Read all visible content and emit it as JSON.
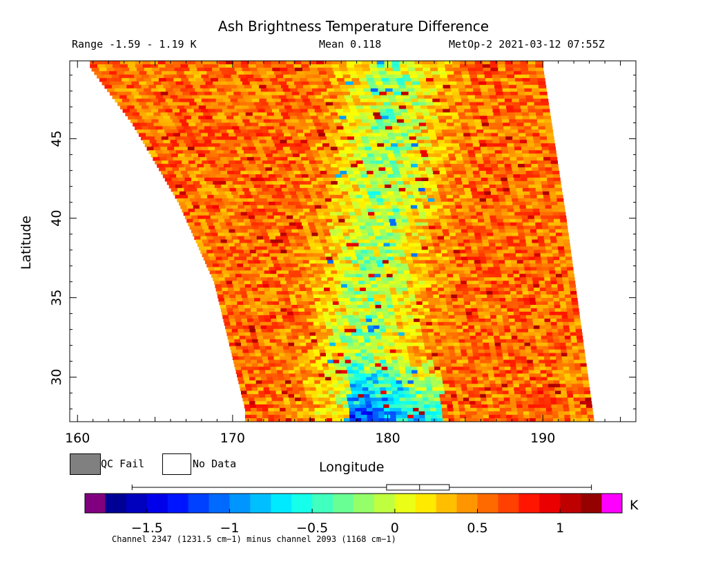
{
  "chart_data": {
    "type": "heatmap",
    "title": "Ash Brightness Temperature Difference",
    "range_text": "Range -1.59 - 1.19 K",
    "mean_text": "Mean 0.118",
    "satellite_time": "MetOp-2 2021-03-12 07:55Z",
    "xlabel": "Longitude",
    "ylabel": "Latitude",
    "xlim": [
      159.5,
      196
    ],
    "ylim": [
      27.2,
      49.9
    ],
    "xticks": [
      160,
      170,
      180,
      190
    ],
    "yticks": [
      30,
      35,
      40,
      45
    ],
    "swath": {
      "left_edge": [
        [
          160.8,
          49.5
        ],
        [
          163.5,
          46.0
        ],
        [
          166.5,
          41.0
        ],
        [
          168.8,
          36.0
        ],
        [
          170.8,
          28.0
        ]
      ],
      "right_edge": [
        [
          190.0,
          49.5
        ],
        [
          191.5,
          40.0
        ],
        [
          193.3,
          27.2
        ]
      ],
      "value_range": [
        -1.59,
        1.19
      ],
      "mean": 0.118,
      "pattern": "warm (0.3 to 1.0 K) across most of swath; cool band (-0.5 to 0) near longitude 176-182; strongest negative values (-1.5 K) near 180E, 27-30N"
    },
    "colorbar": {
      "min": -1.75,
      "max": 1.25,
      "unit": "K",
      "tick_values": [
        -1.5,
        -1,
        -0.5,
        0,
        0.5,
        1
      ],
      "tick_labels": [
        "−1.5",
        "−1",
        "−0.5",
        "0",
        "0.5",
        "1"
      ],
      "under_color": "#800080",
      "over_color": "#ff00ff",
      "boxplot": {
        "whisker_low": -1.59,
        "q1": -0.05,
        "median": 0.15,
        "q3": 0.33,
        "whisker_high": 1.19
      }
    },
    "legend": [
      {
        "label": "QC Fail",
        "color": "#808080"
      },
      {
        "label": "No Data",
        "color": "#ffffff"
      }
    ],
    "footnote": "Channel 2347 (1231.5 cm−1) minus channel 2093 (1168 cm−1)"
  }
}
